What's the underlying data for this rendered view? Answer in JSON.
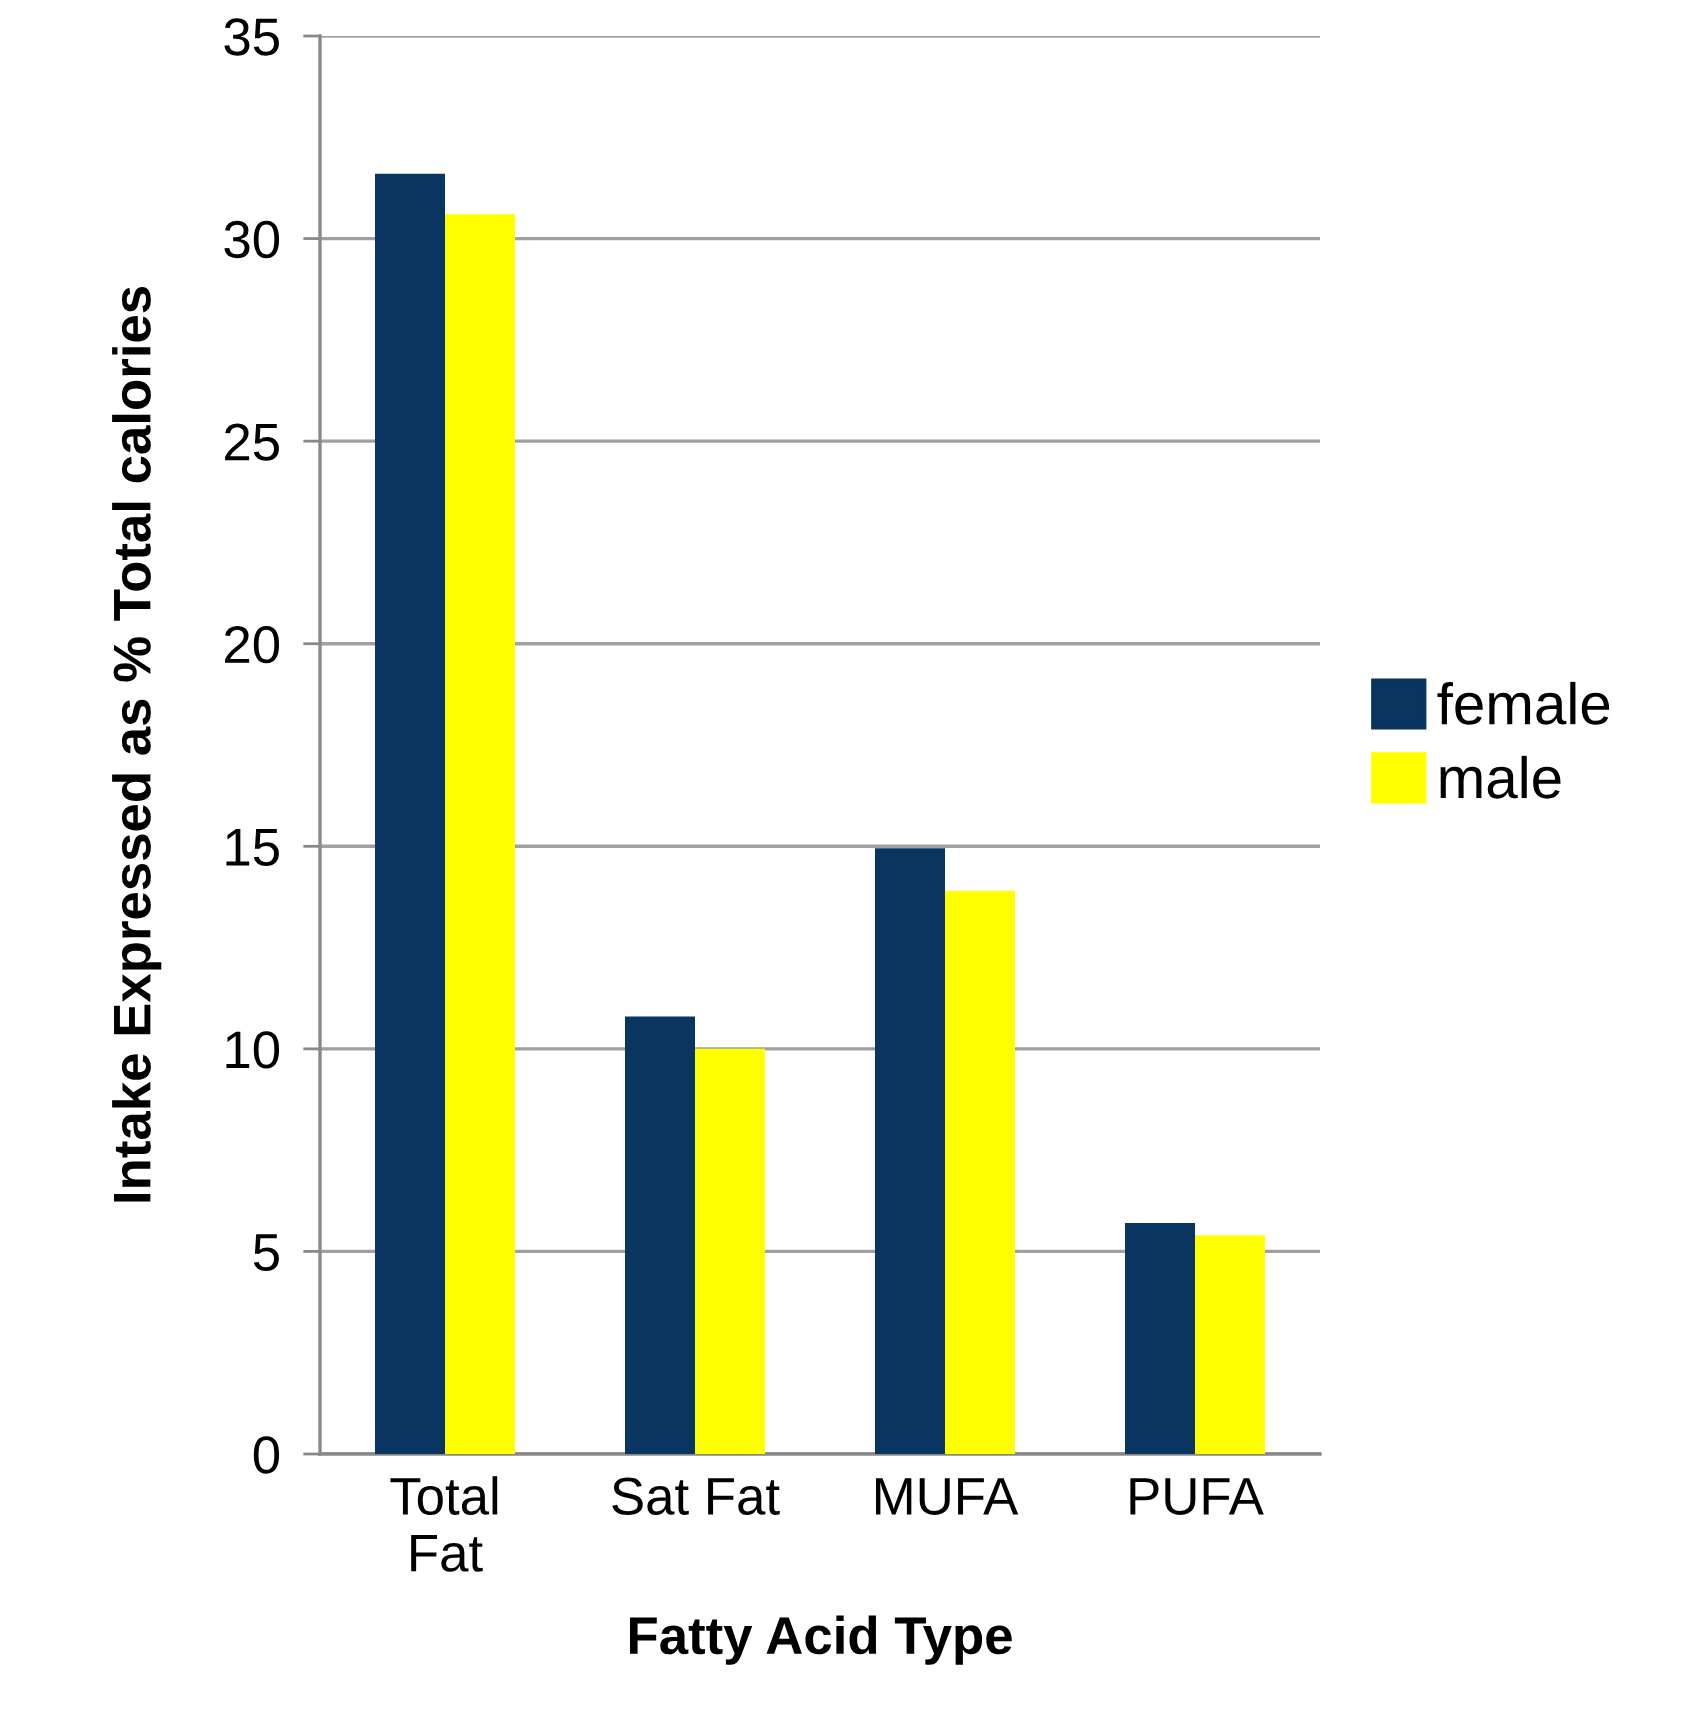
{
  "chart_data": {
    "type": "bar",
    "xlabel": "Fatty Acid Type",
    "ylabel": "Intake Expressed as % Total calories",
    "categories": [
      "Total Fat",
      "Sat Fat",
      "MUFA",
      "PUFA"
    ],
    "series": [
      {
        "name": "female",
        "color": "#0a3560",
        "values": [
          31.6,
          10.8,
          14.95,
          5.7
        ]
      },
      {
        "name": "male",
        "color": "#ffff00",
        "values": [
          30.6,
          10.0,
          13.9,
          5.4
        ]
      }
    ],
    "ylim": [
      0,
      35
    ],
    "yticks": [
      0,
      5,
      10,
      15,
      20,
      25,
      30,
      35
    ],
    "grid": "y",
    "legend": "right"
  }
}
